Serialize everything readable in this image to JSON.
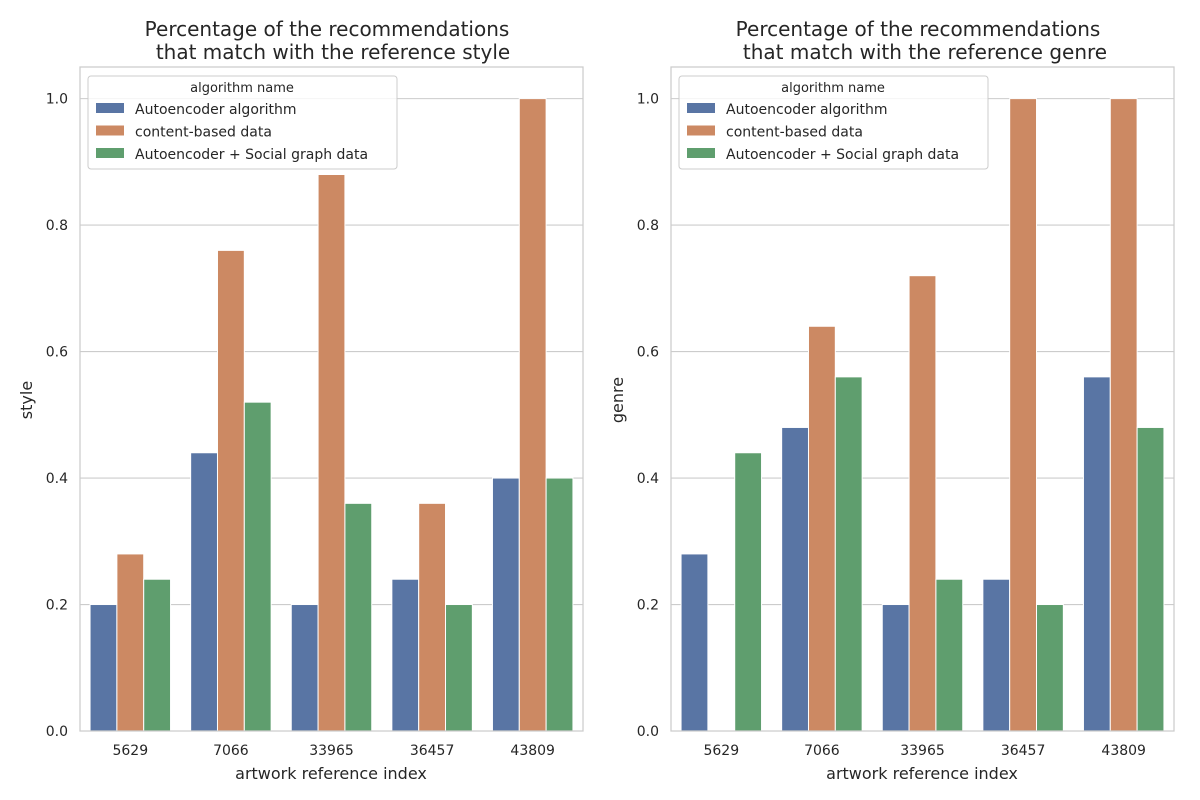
{
  "chart_data": [
    {
      "type": "bar",
      "title_line1": "Percentage of the recommendations",
      "title_line2": "that match with the reference style",
      "xlabel": "artwork reference index",
      "ylabel": "style",
      "ylim": [
        0,
        1.05
      ],
      "yticks": [
        "0.0",
        "0.2",
        "0.4",
        "0.6",
        "0.8",
        "1.0"
      ],
      "ytick_values": [
        0,
        0.2,
        0.4,
        0.6,
        0.8,
        1.0
      ],
      "grid": "horizontal",
      "legend_placement": "top-left",
      "legend_title": "algorithm name",
      "categories": [
        "5629",
        "7066",
        "33965",
        "36457",
        "43809"
      ],
      "series": [
        {
          "name": "Autoencoder algorithm",
          "color": "#5975a4",
          "values": [
            0.2,
            0.44,
            0.2,
            0.24,
            0.4
          ]
        },
        {
          "name": "content-based data",
          "color": "#cc8963",
          "values": [
            0.28,
            0.76,
            0.88,
            0.36,
            1.0
          ]
        },
        {
          "name": "Autoencoder + Social graph data",
          "color": "#5f9e6e",
          "values": [
            0.24,
            0.52,
            0.36,
            0.2,
            0.4
          ]
        }
      ]
    },
    {
      "type": "bar",
      "title_line1": "Percentage of the recommendations",
      "title_line2": "that match with the reference genre",
      "xlabel": "artwork reference index",
      "ylabel": "genre",
      "ylim": [
        0,
        1.05
      ],
      "yticks": [
        "0.0",
        "0.2",
        "0.4",
        "0.6",
        "0.8",
        "1.0"
      ],
      "ytick_values": [
        0,
        0.2,
        0.4,
        0.6,
        0.8,
        1.0
      ],
      "grid": "horizontal",
      "legend_placement": "top-left",
      "legend_title": "algorithm name",
      "categories": [
        "5629",
        "7066",
        "33965",
        "36457",
        "43809"
      ],
      "series": [
        {
          "name": "Autoencoder algorithm",
          "color": "#5975a4",
          "values": [
            0.28,
            0.48,
            0.2,
            0.24,
            0.56
          ]
        },
        {
          "name": "content-based data",
          "color": "#cc8963",
          "values": [
            0.0,
            0.64,
            0.72,
            1.0,
            1.0
          ]
        },
        {
          "name": "Autoencoder + Social graph data",
          "color": "#5f9e6e",
          "values": [
            0.44,
            0.56,
            0.24,
            0.2,
            0.48
          ]
        }
      ]
    }
  ]
}
